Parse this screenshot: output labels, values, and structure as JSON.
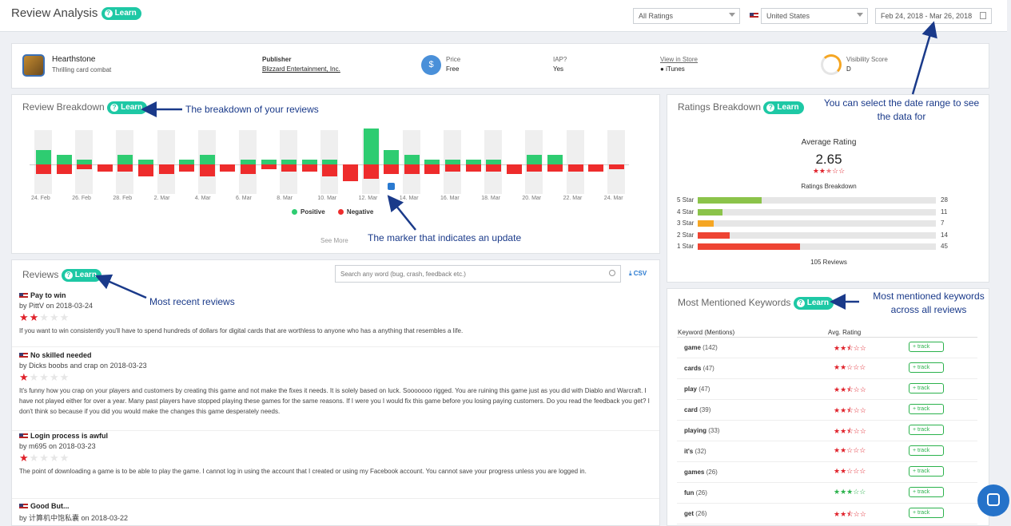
{
  "header": {
    "title": "Review Analysis",
    "learn": "Learn",
    "ratings_filter": "All Ratings",
    "country": "United States",
    "date_range": "Feb 24, 2018 - Mar 26, 2018"
  },
  "app": {
    "name": "Hearthstone",
    "subtitle": "Thrilling card combat",
    "publisher_label": "Publisher",
    "publisher": "Blizzard Entertainment, Inc.",
    "price_label": "Price",
    "price": "Free",
    "iap_label": "IAP?",
    "iap": "Yes",
    "store_link": "View in Store",
    "store": "iTunes",
    "visibility_label": "Visibility Score",
    "visibility": "D",
    "price_icon": "$"
  },
  "breakdown": {
    "title": "Review Breakdown",
    "see_more": "See More",
    "legend_positive": "Positive",
    "legend_negative": "Negative",
    "positive_color": "#2ecc71",
    "negative_color": "#ee2c2c"
  },
  "chart_data": {
    "type": "bar",
    "categories": [
      "24. Feb",
      "25. Feb",
      "26. Feb",
      "27. Feb",
      "28. Feb",
      "1. Mar",
      "2. Mar",
      "3. Mar",
      "4. Mar",
      "5. Mar",
      "6. Mar",
      "7. Mar",
      "8. Mar",
      "9. Mar",
      "10. Mar",
      "11. Mar",
      "12. Mar",
      "13. Mar",
      "14. Mar",
      "15. Mar",
      "16. Mar",
      "17. Mar",
      "18. Mar",
      "19. Mar",
      "20. Mar",
      "21. Mar",
      "22. Mar",
      "23. Mar",
      "24. Mar"
    ],
    "tick_labels": [
      "24. Feb",
      "26. Feb",
      "28. Feb",
      "2. Mar",
      "4. Mar",
      "6. Mar",
      "8. Mar",
      "10. Mar",
      "12. Mar",
      "14. Mar",
      "16. Mar",
      "18. Mar",
      "20. Mar",
      "22. Mar",
      "24. Mar"
    ],
    "series": [
      {
        "name": "Positive",
        "values": [
          6,
          4,
          2,
          0,
          4,
          2,
          0,
          2,
          4,
          0,
          2,
          2,
          2,
          2,
          2,
          0,
          15,
          6,
          4,
          2,
          2,
          2,
          2,
          0,
          4,
          4,
          0,
          0,
          0
        ]
      },
      {
        "name": "Negative",
        "values": [
          -4,
          -4,
          -2,
          -3,
          -3,
          -5,
          -4,
          -3,
          -5,
          -3,
          -4,
          -2,
          -3,
          -3,
          -5,
          -7,
          -6,
          -4,
          -4,
          -4,
          -3,
          -3,
          -3,
          -4,
          -3,
          -3,
          -3,
          -3,
          -2
        ]
      }
    ],
    "ylim": [
      -10,
      18
    ],
    "legend": "bottom",
    "update_marker_at": "13. Mar"
  },
  "reviews_panel": {
    "title": "Reviews",
    "search_placeholder": "Search any word (bug, crash, feedback etc.)",
    "csv": "CSV",
    "items": [
      {
        "title": "Pay to win",
        "by": "by PittV on 2018-03-24",
        "rating": 2,
        "body": "If you want to win consistently you'll have to spend hundreds of dollars for digital cards that are worthless to anyone who has a anything that resembles a life."
      },
      {
        "title": "No skilled needed",
        "by": "by Dicks boobs and crap on 2018-03-23",
        "rating": 1,
        "body": "It's funny how you crap on your players and customers by creating this game and not make the fixes it needs. It is solely based on luck. Sooooooo rigged. You are ruining this game just as you did with Diablo and Warcraft. I have not played either for over a year. Many past players have stopped playing these games for the same reasons. If I were you I would fix this game before you losing paying customers. Do you read the feedback you get? I don't think so because if you did you would make the changes this game desperately needs."
      },
      {
        "title": "Login process is awful",
        "by": "by m695 on 2018-03-23",
        "rating": 1,
        "body": "The point of downloading a game is to be able to play the game. I cannot log in using the account that I created or using my Facebook account. You cannot save your progress unless you are logged in."
      },
      {
        "title": "Good But...",
        "by": "by 计算机中饱私囊 on 2018-03-22",
        "rating": 0,
        "body": ""
      }
    ]
  },
  "ratings": {
    "title": "Ratings Breakdown",
    "avg_label": "Average Rating",
    "avg": "2.65",
    "avg_stars": 2.65,
    "sub": "Ratings Breakdown",
    "total": "105 Reviews",
    "rows": [
      {
        "label": "5 Star",
        "count": "28",
        "fraction": 0.267,
        "color": "#8bc34a"
      },
      {
        "label": "4 Star",
        "count": "11",
        "fraction": 0.105,
        "color": "#8bc34a"
      },
      {
        "label": "3 Star",
        "count": "7",
        "fraction": 0.067,
        "color": "#f5a623"
      },
      {
        "label": "2 Star",
        "count": "14",
        "fraction": 0.133,
        "color": "#ee4433"
      },
      {
        "label": "1 Star",
        "count": "45",
        "fraction": 0.429,
        "color": "#ee4433"
      }
    ]
  },
  "keywords": {
    "title": "Most Mentioned Keywords",
    "col_keyword": "Keyword (Mentions)",
    "col_rating": "Avg. Rating",
    "track": "track",
    "rows": [
      {
        "word": "game",
        "count": "(142)",
        "stars": 2.5,
        "green": false
      },
      {
        "word": "cards",
        "count": "(47)",
        "stars": 2,
        "green": false
      },
      {
        "word": "play",
        "count": "(47)",
        "stars": 2.5,
        "green": false
      },
      {
        "word": "card",
        "count": "(39)",
        "stars": 2.5,
        "green": false
      },
      {
        "word": "playing",
        "count": "(33)",
        "stars": 2.5,
        "green": false
      },
      {
        "word": "it's",
        "count": "(32)",
        "stars": 2,
        "green": false
      },
      {
        "word": "games",
        "count": "(26)",
        "stars": 2,
        "green": false
      },
      {
        "word": "fun",
        "count": "(26)",
        "stars": 3,
        "green": true
      },
      {
        "word": "get",
        "count": "(26)",
        "stars": 2.5,
        "green": false
      }
    ]
  },
  "annotations": {
    "date": "You can select the date range to see the data for",
    "breakdown": "The breakdown of your reviews",
    "marker": "The marker that indicates an update",
    "reviews": "Most recent reviews",
    "keywords": "Most mentioned keywords across all reviews"
  }
}
